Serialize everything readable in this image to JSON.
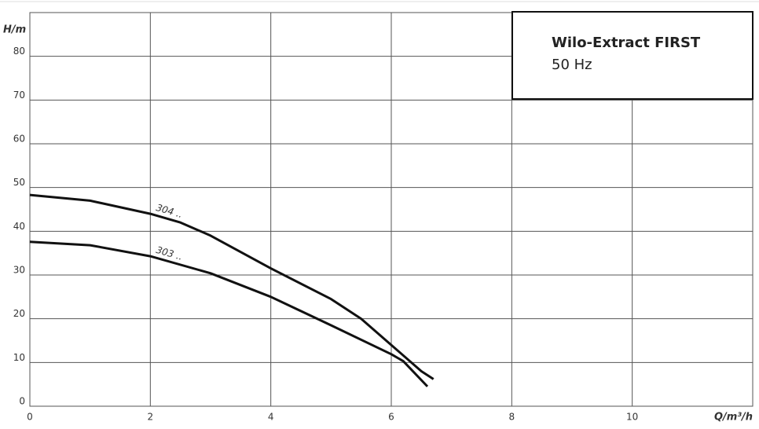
{
  "chart_data": {
    "type": "line",
    "title": "Wilo-Extract FIRST",
    "subtitle": "50 Hz",
    "x_label": "Q/m³/h",
    "y_label": "H/m",
    "xlim": [
      0,
      12
    ],
    "ylim": [
      0,
      90
    ],
    "xticks": [
      0,
      2,
      4,
      6,
      8,
      10
    ],
    "yticks": [
      0,
      10,
      20,
      30,
      40,
      50,
      60,
      70,
      80
    ],
    "grid": true,
    "series": [
      {
        "name": "304 ..",
        "color": "#111111",
        "x": [
          0,
          1,
          2,
          2.5,
          3,
          4,
          5,
          5.5,
          6,
          6.5,
          6.7
        ],
        "values": [
          48.3,
          47,
          44,
          42,
          39,
          31.5,
          24.5,
          20,
          14,
          8,
          6.2
        ]
      },
      {
        "name": "303 ..",
        "color": "#111111",
        "x": [
          0,
          1,
          2,
          3,
          4,
          5,
          6,
          6.2,
          6.6
        ],
        "values": [
          37.6,
          36.8,
          34.3,
          30.4,
          25,
          18.5,
          11.9,
          10.3,
          4.5
        ]
      }
    ]
  }
}
